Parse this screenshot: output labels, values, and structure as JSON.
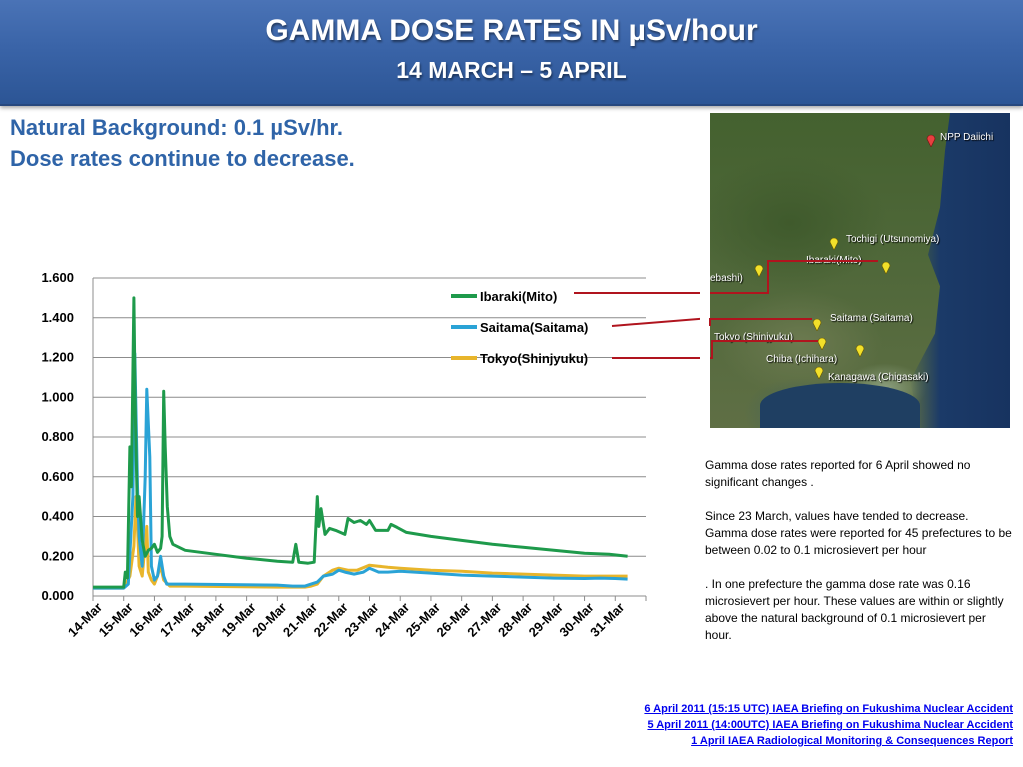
{
  "header": {
    "title": "GAMMA DOSE RATES IN µSv/hour",
    "subtitle": "14 MARCH – 5 APRIL"
  },
  "intro": {
    "line1": "Natural Background: 0.1 µSv/hr.",
    "line2": "Dose rates continue  to decrease."
  },
  "chart_data": {
    "type": "line",
    "title": "",
    "xlabel": "",
    "ylabel": "",
    "ylim": [
      0,
      1.6
    ],
    "yticks": [
      "0.000",
      "0.200",
      "0.400",
      "0.600",
      "0.800",
      "1.000",
      "1.200",
      "1.400",
      "1.600"
    ],
    "categories": [
      "14-Mar",
      "15-Mar",
      "16-Mar",
      "17-Mar",
      "18-Mar",
      "19-Mar",
      "20-Mar",
      "21-Mar",
      "22-Mar",
      "23-Mar",
      "24-Mar",
      "25-Mar",
      "26-Mar",
      "27-Mar",
      "28-Mar",
      "29-Mar",
      "30-Mar",
      "31-Mar"
    ],
    "grid": "horizontal",
    "legend_position": "top-right",
    "series": [
      {
        "name": "Ibaraki(Mito)",
        "color": "#1e9a4b",
        "points": [
          [
            0.0,
            0.045
          ],
          [
            1.0,
            0.045
          ],
          [
            1.05,
            0.12
          ],
          [
            1.12,
            0.09
          ],
          [
            1.2,
            0.75
          ],
          [
            1.25,
            0.55
          ],
          [
            1.33,
            1.5
          ],
          [
            1.38,
            0.9
          ],
          [
            1.45,
            0.4
          ],
          [
            1.5,
            0.5
          ],
          [
            1.6,
            0.28
          ],
          [
            1.7,
            0.2
          ],
          [
            1.8,
            0.23
          ],
          [
            1.9,
            0.24
          ],
          [
            2.0,
            0.26
          ],
          [
            2.1,
            0.22
          ],
          [
            2.2,
            0.24
          ],
          [
            2.25,
            0.3
          ],
          [
            2.3,
            1.03
          ],
          [
            2.35,
            0.75
          ],
          [
            2.42,
            0.45
          ],
          [
            2.5,
            0.3
          ],
          [
            2.6,
            0.26
          ],
          [
            3.0,
            0.23
          ],
          [
            4.0,
            0.21
          ],
          [
            5.0,
            0.19
          ],
          [
            6.0,
            0.175
          ],
          [
            6.5,
            0.17
          ],
          [
            6.6,
            0.26
          ],
          [
            6.7,
            0.17
          ],
          [
            7.0,
            0.165
          ],
          [
            7.2,
            0.17
          ],
          [
            7.3,
            0.5
          ],
          [
            7.35,
            0.35
          ],
          [
            7.42,
            0.44
          ],
          [
            7.55,
            0.31
          ],
          [
            7.7,
            0.34
          ],
          [
            7.9,
            0.33
          ],
          [
            8.2,
            0.31
          ],
          [
            8.3,
            0.39
          ],
          [
            8.5,
            0.37
          ],
          [
            8.7,
            0.38
          ],
          [
            8.9,
            0.36
          ],
          [
            9.0,
            0.38
          ],
          [
            9.2,
            0.33
          ],
          [
            9.6,
            0.33
          ],
          [
            9.7,
            0.36
          ],
          [
            9.9,
            0.345
          ],
          [
            10.2,
            0.32
          ],
          [
            11.0,
            0.3
          ],
          [
            12.0,
            0.28
          ],
          [
            13.0,
            0.26
          ],
          [
            14.0,
            0.245
          ],
          [
            15.0,
            0.23
          ],
          [
            16.0,
            0.215
          ],
          [
            16.8,
            0.21
          ],
          [
            17.4,
            0.2
          ]
        ]
      },
      {
        "name": "Saitama(Saitama)",
        "color": "#2aa3d6",
        "points": [
          [
            0.0,
            0.04
          ],
          [
            1.0,
            0.04
          ],
          [
            1.15,
            0.06
          ],
          [
            1.3,
            0.5
          ],
          [
            1.36,
            1.22
          ],
          [
            1.45,
            0.55
          ],
          [
            1.5,
            0.3
          ],
          [
            1.6,
            0.15
          ],
          [
            1.7,
            0.6
          ],
          [
            1.75,
            1.04
          ],
          [
            1.85,
            0.7
          ],
          [
            1.9,
            0.15
          ],
          [
            2.0,
            0.08
          ],
          [
            2.1,
            0.1
          ],
          [
            2.2,
            0.2
          ],
          [
            2.3,
            0.1
          ],
          [
            2.4,
            0.06
          ],
          [
            3.0,
            0.06
          ],
          [
            6.0,
            0.055
          ],
          [
            6.5,
            0.05
          ],
          [
            6.9,
            0.05
          ],
          [
            7.1,
            0.06
          ],
          [
            7.3,
            0.07
          ],
          [
            7.5,
            0.1
          ],
          [
            7.8,
            0.11
          ],
          [
            8.0,
            0.13
          ],
          [
            8.2,
            0.12
          ],
          [
            8.5,
            0.11
          ],
          [
            8.8,
            0.12
          ],
          [
            9.0,
            0.14
          ],
          [
            9.3,
            0.12
          ],
          [
            9.6,
            0.12
          ],
          [
            10.0,
            0.125
          ],
          [
            11.0,
            0.115
          ],
          [
            12.0,
            0.105
          ],
          [
            13.0,
            0.1
          ],
          [
            14.0,
            0.095
          ],
          [
            15.0,
            0.09
          ],
          [
            16.0,
            0.088
          ],
          [
            16.5,
            0.09
          ],
          [
            17.0,
            0.088
          ],
          [
            17.4,
            0.085
          ]
        ]
      },
      {
        "name": "Tokyo(Shinjyuku)",
        "color": "#e8b52b",
        "points": [
          [
            0.0,
            0.04
          ],
          [
            1.0,
            0.04
          ],
          [
            1.2,
            0.1
          ],
          [
            1.33,
            0.25
          ],
          [
            1.4,
            0.5
          ],
          [
            1.45,
            0.35
          ],
          [
            1.5,
            0.15
          ],
          [
            1.6,
            0.1
          ],
          [
            1.75,
            0.35
          ],
          [
            1.8,
            0.12
          ],
          [
            1.9,
            0.08
          ],
          [
            2.0,
            0.06
          ],
          [
            2.1,
            0.1
          ],
          [
            2.2,
            0.15
          ],
          [
            2.3,
            0.08
          ],
          [
            2.5,
            0.05
          ],
          [
            3.0,
            0.05
          ],
          [
            6.0,
            0.045
          ],
          [
            6.9,
            0.045
          ],
          [
            7.1,
            0.05
          ],
          [
            7.3,
            0.06
          ],
          [
            7.5,
            0.1
          ],
          [
            7.8,
            0.13
          ],
          [
            8.0,
            0.14
          ],
          [
            8.3,
            0.13
          ],
          [
            8.6,
            0.13
          ],
          [
            9.0,
            0.155
          ],
          [
            9.3,
            0.15
          ],
          [
            9.6,
            0.145
          ],
          [
            10.0,
            0.14
          ],
          [
            11.0,
            0.13
          ],
          [
            12.0,
            0.125
          ],
          [
            13.0,
            0.115
          ],
          [
            14.0,
            0.11
          ],
          [
            15.0,
            0.105
          ],
          [
            16.0,
            0.1
          ],
          [
            17.0,
            0.1
          ],
          [
            17.4,
            0.1
          ]
        ]
      }
    ]
  },
  "map": {
    "labels": [
      "NPP Daiichi",
      "Tochigi (Utsunomiya)",
      "Ibaraki(Mito)",
      "ebashi)",
      "Saitama (Saitama)",
      "Tokyo (Shinjyuku)",
      "Chiba (Ichihara)",
      "Kanagawa (Chigasaki)"
    ],
    "pin_red": "#e84040",
    "pin_yellow": "#f2e02a",
    "connector_color": "#b0141e"
  },
  "description": {
    "p1": "Gamma dose rates reported for 6 April showed no significant changes .",
    "p2": "Since 23 March, values have tended to decrease. Gamma dose rates were reported for 45 prefectures to be between 0.02 to 0.1 microsievert per hour",
    "p3": ". In one prefecture the gamma dose rate was 0.16 microsievert per hour. These values are within or slightly above the natural background of 0.1 microsievert per hour."
  },
  "references": [
    "6 April 2011 (15:15 UTC) IAEA Briefing on Fukushima Nuclear Accident",
    "5 April 2011 (14:00UTC) IAEA Briefing on Fukushima Nuclear Accident",
    "1 April IAEA Radiological Monitoring & Consequences Report"
  ]
}
